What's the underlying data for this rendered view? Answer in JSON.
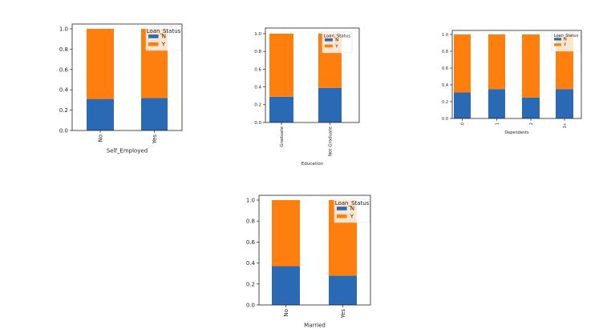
{
  "colors": {
    "N": "#2a6ab5",
    "Y": "#ff7f0e"
  },
  "chart_data": [
    {
      "type": "bar",
      "stacked": true,
      "xlabel": "Self_Employed",
      "ylabel": "",
      "categories": [
        "No",
        "Yes"
      ],
      "series": [
        {
          "name": "N",
          "values": [
            0.31,
            0.32
          ]
        },
        {
          "name": "Y",
          "values": [
            0.69,
            0.68
          ]
        }
      ],
      "ylim": [
        0,
        1.0
      ],
      "yticks": [
        "0.0",
        "0.2",
        "0.4",
        "0.6",
        "0.8",
        "1.0"
      ],
      "legend_title": "Loan_Status",
      "legend": "top-right",
      "grid": false
    },
    {
      "type": "bar",
      "stacked": true,
      "xlabel": "Education",
      "ylabel": "",
      "categories": [
        "Graduate",
        "Not Graduate"
      ],
      "series": [
        {
          "name": "N",
          "values": [
            0.29,
            0.39
          ]
        },
        {
          "name": "Y",
          "values": [
            0.71,
            0.61
          ]
        }
      ],
      "ylim": [
        0,
        1.0
      ],
      "yticks": [
        "0.0",
        "0.2",
        "0.4",
        "0.6",
        "0.8",
        "1.0"
      ],
      "legend_title": "Loan_Status",
      "legend": "top-right",
      "grid": false
    },
    {
      "type": "bar",
      "stacked": true,
      "xlabel": "Dependents",
      "ylabel": "",
      "categories": [
        "0",
        "1",
        "2",
        "3+"
      ],
      "series": [
        {
          "name": "N",
          "values": [
            0.31,
            0.35,
            0.25,
            0.35
          ]
        },
        {
          "name": "Y",
          "values": [
            0.69,
            0.65,
            0.75,
            0.65
          ]
        }
      ],
      "ylim": [
        0,
        1.0
      ],
      "yticks": [
        "0.0",
        "0.2",
        "0.4",
        "0.6",
        "0.8",
        "1.0"
      ],
      "legend_title": "Loan_Status",
      "legend": "top-right",
      "grid": false
    },
    {
      "type": "bar",
      "stacked": true,
      "xlabel": "Married",
      "ylabel": "",
      "categories": [
        "No",
        "Yes"
      ],
      "series": [
        {
          "name": "N",
          "values": [
            0.37,
            0.28
          ]
        },
        {
          "name": "Y",
          "values": [
            0.63,
            0.72
          ]
        }
      ],
      "ylim": [
        0,
        1.0
      ],
      "yticks": [
        "0.0",
        "0.2",
        "0.4",
        "0.6",
        "0.8",
        "1.0"
      ],
      "legend_title": "Loan_Status",
      "legend": "top-right",
      "grid": false
    }
  ]
}
